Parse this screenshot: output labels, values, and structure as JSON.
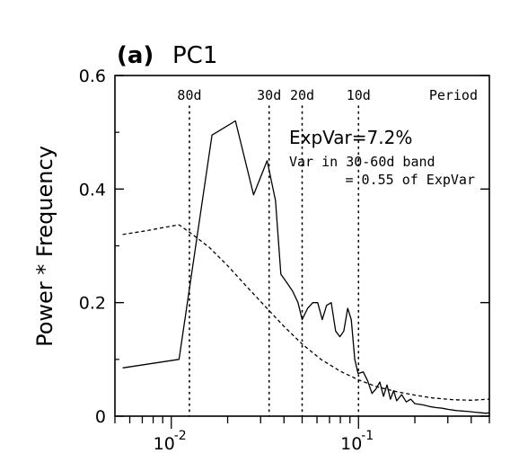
{
  "chart_data": {
    "type": "line",
    "panel_label": "(a)",
    "title": "PC1",
    "ylabel": "Power * Frequency",
    "xlabel": "",
    "x_scale": "log",
    "xlim": [
      0.005,
      0.5
    ],
    "ylim": [
      0,
      0.6
    ],
    "y_ticks": [
      {
        "value": 0,
        "label": "0"
      },
      {
        "value": 0.2,
        "label": "0.2"
      },
      {
        "value": 0.4,
        "label": "0.4"
      },
      {
        "value": 0.6,
        "label": "0.6"
      }
    ],
    "x_major_ticks": [
      {
        "value": 0.01,
        "label_base": "10",
        "label_exp": "-2"
      },
      {
        "value": 0.1,
        "label_base": "10",
        "label_exp": "-1"
      }
    ],
    "period_header": "Period",
    "period_lines": [
      {
        "frequency": 0.0125,
        "label": "80d"
      },
      {
        "frequency": 0.0333,
        "label": "30d"
      },
      {
        "frequency": 0.05,
        "label": "20d"
      },
      {
        "frequency": 0.1,
        "label": "10d"
      }
    ],
    "annotations": {
      "expvar": "ExpVar=7.2%",
      "band_line1": "Var in 30-60d band",
      "band_line2": "= 0.55 of ExpVar"
    },
    "series": [
      {
        "style": "solid",
        "x": [
          0.0055,
          0.011,
          0.0165,
          0.022,
          0.0275,
          0.0325,
          0.036,
          0.0385,
          0.0415,
          0.0445,
          0.0475,
          0.05,
          0.0535,
          0.057,
          0.0605,
          0.064,
          0.0675,
          0.0715,
          0.0755,
          0.0795,
          0.0835,
          0.0875,
          0.0915,
          0.0955,
          0.0995,
          0.106,
          0.112,
          0.118,
          0.124,
          0.13,
          0.136,
          0.142,
          0.148,
          0.154,
          0.16,
          0.17,
          0.18,
          0.19,
          0.2,
          0.22,
          0.24,
          0.26,
          0.28,
          0.3,
          0.33,
          0.36,
          0.39,
          0.42,
          0.45,
          0.48,
          0.5
        ],
        "y": [
          0.085,
          0.1,
          0.495,
          0.52,
          0.39,
          0.45,
          0.38,
          0.25,
          0.235,
          0.22,
          0.2,
          0.17,
          0.19,
          0.2,
          0.2,
          0.17,
          0.195,
          0.2,
          0.15,
          0.14,
          0.15,
          0.19,
          0.17,
          0.1,
          0.075,
          0.078,
          0.062,
          0.04,
          0.048,
          0.06,
          0.035,
          0.055,
          0.03,
          0.045,
          0.027,
          0.038,
          0.025,
          0.03,
          0.022,
          0.02,
          0.017,
          0.015,
          0.014,
          0.012,
          0.01,
          0.009,
          0.008,
          0.007,
          0.006,
          0.005,
          0.006
        ]
      },
      {
        "style": "dashed",
        "x": [
          0.0055,
          0.0075,
          0.009,
          0.011,
          0.013,
          0.016,
          0.02,
          0.025,
          0.032,
          0.04,
          0.05,
          0.063,
          0.08,
          0.1,
          0.125,
          0.16,
          0.2,
          0.25,
          0.32,
          0.4,
          0.5
        ],
        "y": [
          0.32,
          0.327,
          0.332,
          0.337,
          0.32,
          0.297,
          0.265,
          0.23,
          0.192,
          0.158,
          0.127,
          0.1,
          0.079,
          0.064,
          0.052,
          0.043,
          0.037,
          0.032,
          0.029,
          0.028,
          0.03
        ]
      }
    ]
  }
}
